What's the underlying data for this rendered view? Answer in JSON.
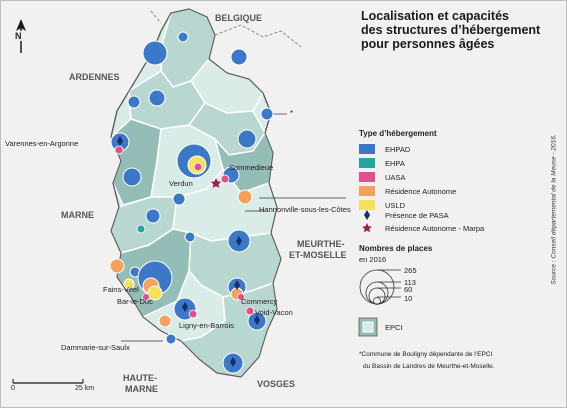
{
  "map": {
    "title_lines": [
      "Localisation et capacités",
      "des structures d’hébergement",
      "pour personnes âgées"
    ],
    "regions": [
      "BELGIQUE",
      "ARDENNES",
      "MARNE",
      "MEURTHE-",
      "ET-MOSELLE",
      "HAUTE-",
      "MARNE",
      "VOSGES"
    ],
    "towns": [
      "Varennes-en-Argonne",
      "Verdun",
      "Sommedieue",
      "Hannonville-sous-les-Côtes",
      "Fains-Véel",
      "Bar-le-Duc",
      "Commercy",
      "Void-Vacon",
      "Ligny-en-Barrois",
      "Dammarie-sur-Saulx"
    ],
    "asterisk": "*",
    "north_label": "N",
    "scale": {
      "zero": "0",
      "distance": "25 km"
    },
    "colors": {
      "background": "#f1f1f1",
      "epci_light": "#d9ece8",
      "epci_mid": "#b8d7d0",
      "epci_dark": "#93bdb6",
      "border": "#ffffff",
      "outline": "#5b5b5b"
    }
  },
  "legend": {
    "type_title": "Type d’hébergement",
    "types": [
      {
        "label": "EHPAD",
        "color": "#3b78c8"
      },
      {
        "label": "EHPA",
        "color": "#22a6a0"
      },
      {
        "label": "UASA",
        "color": "#e0508f"
      },
      {
        "label": "Résidence Autonome",
        "color": "#f3a15b"
      },
      {
        "label": "USLD",
        "color": "#f3e25a"
      }
    ],
    "markers": [
      {
        "label": "Présence de PASA",
        "symbol": "diamond",
        "color": "#1e2b6b"
      },
      {
        "label": "Résidence Autonome - Marpa",
        "symbol": "star",
        "color": "#a01c44"
      }
    ],
    "places_title": "Nombres de places",
    "places_subtitle": "en 2016",
    "sizes": [
      265,
      113,
      60,
      10
    ],
    "size_labels": [
      "265",
      "113",
      "60",
      "10"
    ],
    "epci_label": "EPCI"
  },
  "footnote": [
    "*Commune de Bouligny dépendante de l’EPCI",
    "du Bassin de Landres de Meurthe-et-Moselle."
  ],
  "source": "Source : Conseil départemental de la Meuse - 2016."
}
